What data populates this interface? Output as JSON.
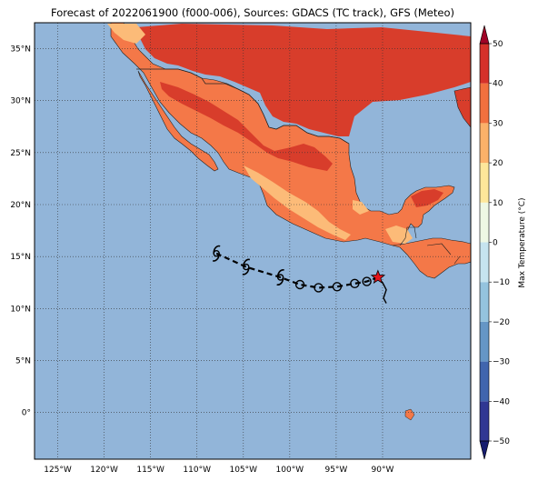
{
  "title": "Forecast of 2022061900 (f000-006), Sources: GDACS (TC track), GFS (Meteo)",
  "map": {
    "lon_range": [
      -127.5,
      -80.5
    ],
    "lat_range": [
      -4.5,
      37.5
    ],
    "lon_ticks": [
      {
        "value": -125,
        "label": "125°W"
      },
      {
        "value": -120,
        "label": "120°W"
      },
      {
        "value": -115,
        "label": "115°W"
      },
      {
        "value": -110,
        "label": "110°W"
      },
      {
        "value": -105,
        "label": "105°W"
      },
      {
        "value": -100,
        "label": "100°W"
      },
      {
        "value": -95,
        "label": "95°W"
      },
      {
        "value": -90,
        "label": "90°W"
      }
    ],
    "lat_ticks": [
      {
        "value": 35,
        "label": "35°N"
      },
      {
        "value": 30,
        "label": "30°N"
      },
      {
        "value": 25,
        "label": "25°N"
      },
      {
        "value": 20,
        "label": "20°N"
      },
      {
        "value": 15,
        "label": "15°N"
      },
      {
        "value": 10,
        "label": "10°N"
      },
      {
        "value": 5,
        "label": "5°N"
      },
      {
        "value": 0,
        "label": "0°"
      }
    ],
    "grid": true,
    "ocean_color": "#92b5d9"
  },
  "track": {
    "current_position": {
      "lon": -90.5,
      "lat": 13.0
    },
    "points": [
      {
        "lon": -91.7,
        "lat": 12.6,
        "type": "circle"
      },
      {
        "lon": -93.0,
        "lat": 12.4,
        "type": "circle"
      },
      {
        "lon": -94.9,
        "lat": 12.1,
        "type": "circle"
      },
      {
        "lon": -96.9,
        "lat": 12.0,
        "type": "circle"
      },
      {
        "lon": -98.9,
        "lat": 12.3,
        "type": "circle"
      },
      {
        "lon": -101.0,
        "lat": 13.0,
        "type": "storm"
      },
      {
        "lon": -104.7,
        "lat": 14.0,
        "type": "storm"
      },
      {
        "lon": -107.9,
        "lat": 15.3,
        "type": "storm"
      }
    ],
    "south_tail": [
      [
        -90.5,
        13.0
      ],
      [
        -90.0,
        12.5
      ],
      [
        -89.6,
        11.8
      ],
      [
        -89.9,
        11.0
      ],
      [
        -89.6,
        10.5
      ]
    ]
  },
  "colorbar": {
    "label": "Max Temperature (°C)",
    "ticks": [
      -50,
      -40,
      -30,
      -20,
      -10,
      0,
      10,
      20,
      30,
      40,
      50
    ],
    "levels": [
      {
        "from": -50,
        "to": -40,
        "color": "#303793"
      },
      {
        "from": -40,
        "to": -30,
        "color": "#4065ae"
      },
      {
        "from": -30,
        "to": -20,
        "color": "#6596c6"
      },
      {
        "from": -20,
        "to": -10,
        "color": "#94c3de"
      },
      {
        "from": -10,
        "to": 0,
        "color": "#c6e4ef"
      },
      {
        "from": 0,
        "to": 10,
        "color": "#eef8e4"
      },
      {
        "from": 10,
        "to": 20,
        "color": "#fde79a"
      },
      {
        "from": 20,
        "to": 30,
        "color": "#fbb169"
      },
      {
        "from": 30,
        "to": 40,
        "color": "#f1703e"
      },
      {
        "from": 40,
        "to": 50,
        "color": "#d5312a"
      }
    ],
    "under_color": "#161c6e",
    "over_color": "#9f0326"
  },
  "colors": {
    "land_hot": "#d83d2b",
    "land_warm": "#f47848",
    "land_mild": "#fcbb78"
  }
}
